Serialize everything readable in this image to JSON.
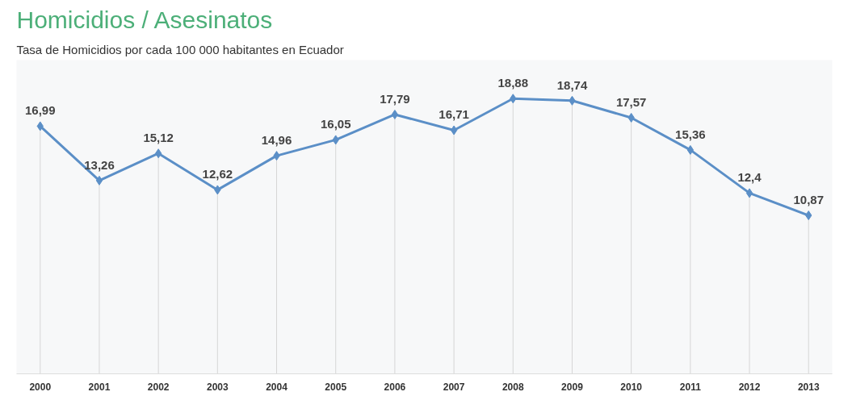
{
  "chart_data": {
    "type": "line",
    "title": "Homicidios / Asesinatos",
    "subtitle": "Tasa de Homicidios por cada 100 000 habitantes en Ecuador",
    "categories": [
      "2000",
      "2001",
      "2002",
      "2003",
      "2004",
      "2005",
      "2006",
      "2007",
      "2008",
      "2009",
      "2010",
      "2011",
      "2012",
      "2013"
    ],
    "series": [
      {
        "color": "#5b8fc7",
        "values": [
          16.99,
          13.26,
          15.12,
          12.62,
          14.96,
          16.05,
          17.79,
          16.71,
          18.88,
          18.74,
          17.57,
          15.36,
          12.4,
          10.87
        ],
        "value_labels": [
          "16,99",
          "13,26",
          "15,12",
          "12,62",
          "14,96",
          "16,05",
          "17,79",
          "16,71",
          "18,88",
          "18,74",
          "17,57",
          "15,36",
          "12,4",
          "10,87"
        ]
      }
    ],
    "marker": "diamond",
    "grid": "x"
  }
}
